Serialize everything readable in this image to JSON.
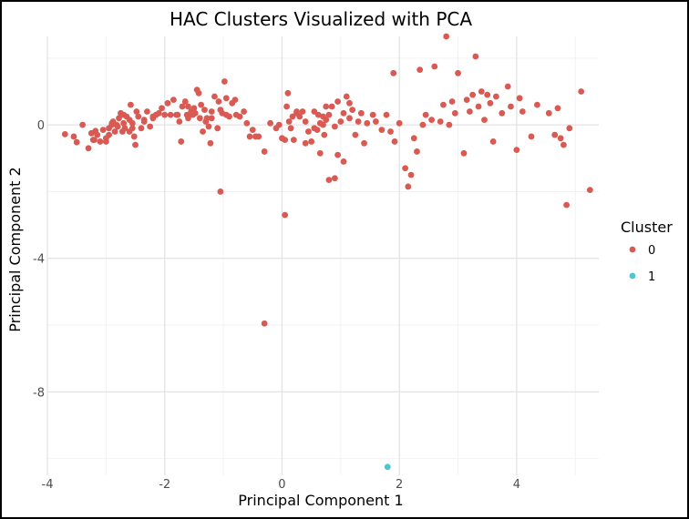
{
  "chart_data": {
    "type": "scatter",
    "title": "HAC Clusters Visualized with PCA",
    "xlabel": "Principal Component 1",
    "ylabel": "Principal Component 2",
    "xlim": [
      -4,
      5.4
    ],
    "ylim": [
      -10.5,
      2.65
    ],
    "x_ticks": [
      -4,
      -2,
      0,
      2,
      4
    ],
    "y_ticks": [
      0,
      -4,
      -8
    ],
    "grid": true,
    "legend": {
      "title": "Cluster",
      "position": "right"
    },
    "colors": {
      "0": "#d95a53",
      "1": "#4ec6cf"
    },
    "series": [
      {
        "name": "0",
        "color": "#d95a53",
        "points": [
          [
            -3.7,
            -0.28
          ],
          [
            -3.55,
            -0.35
          ],
          [
            -3.5,
            -0.52
          ],
          [
            -3.4,
            0.0
          ],
          [
            -3.3,
            -0.7
          ],
          [
            -3.25,
            -0.25
          ],
          [
            -3.22,
            -0.45
          ],
          [
            -3.18,
            -0.18
          ],
          [
            -3.15,
            -0.3
          ],
          [
            -3.1,
            -0.5
          ],
          [
            -3.05,
            -0.15
          ],
          [
            -3.0,
            -0.4
          ],
          [
            -2.95,
            -0.3
          ],
          [
            -2.9,
            0.0
          ],
          [
            -2.88,
            0.1
          ],
          [
            -2.85,
            -0.2
          ],
          [
            -2.8,
            -0.05
          ],
          [
            -2.78,
            0.2
          ],
          [
            -2.75,
            0.35
          ],
          [
            -2.72,
            -0.2
          ],
          [
            -2.7,
            0.05
          ],
          [
            -2.68,
            -0.1
          ],
          [
            -2.65,
            0.25
          ],
          [
            -2.6,
            0.15
          ],
          [
            -2.58,
            0.6
          ],
          [
            -2.55,
            0.05
          ],
          [
            -2.52,
            -0.35
          ],
          [
            -2.5,
            -0.6
          ],
          [
            -2.48,
            0.4
          ],
          [
            -2.45,
            0.25
          ],
          [
            -2.4,
            -0.1
          ],
          [
            -2.35,
            0.1
          ],
          [
            -2.3,
            0.4
          ],
          [
            -2.25,
            -0.05
          ],
          [
            -2.2,
            0.25
          ],
          [
            -2.15,
            0.3
          ],
          [
            -2.1,
            0.35
          ],
          [
            -2.05,
            0.5
          ],
          [
            -2.0,
            0.3
          ],
          [
            -1.95,
            0.65
          ],
          [
            -1.85,
            0.75
          ],
          [
            -1.8,
            0.3
          ],
          [
            -1.75,
            0.1
          ],
          [
            -1.72,
            -0.5
          ],
          [
            -1.7,
            0.55
          ],
          [
            -1.65,
            0.7
          ],
          [
            -1.62,
            0.3
          ],
          [
            -1.6,
            0.2
          ],
          [
            -1.55,
            0.4
          ],
          [
            -1.5,
            0.5
          ],
          [
            -1.48,
            0.35
          ],
          [
            -1.45,
            1.05
          ],
          [
            -1.42,
            0.95
          ],
          [
            -1.38,
            0.6
          ],
          [
            -1.35,
            -0.2
          ],
          [
            -1.32,
            0.45
          ],
          [
            -1.3,
            0.1
          ],
          [
            -1.28,
            0.2
          ],
          [
            -1.25,
            -0.05
          ],
          [
            -1.22,
            -0.55
          ],
          [
            -1.2,
            0.2
          ],
          [
            -1.15,
            0.85
          ],
          [
            -1.1,
            -0.1
          ],
          [
            -1.05,
            0.45
          ],
          [
            -1.02,
            0.35
          ],
          [
            -0.98,
            1.3
          ],
          [
            -0.95,
            0.8
          ],
          [
            -0.9,
            0.25
          ],
          [
            -0.85,
            0.65
          ],
          [
            -0.8,
            0.75
          ],
          [
            -0.78,
            0.3
          ],
          [
            -0.72,
            0.25
          ],
          [
            -0.65,
            0.4
          ],
          [
            -0.6,
            0.05
          ],
          [
            -0.5,
            -0.15
          ],
          [
            -0.45,
            -0.35
          ],
          [
            -0.4,
            -0.35
          ],
          [
            -0.3,
            -0.8
          ],
          [
            -0.2,
            0.05
          ],
          [
            -0.1,
            -0.1
          ],
          [
            -0.05,
            0.0
          ],
          [
            0.0,
            -0.4
          ],
          [
            0.05,
            -0.45
          ],
          [
            0.08,
            0.55
          ],
          [
            0.1,
            0.95
          ],
          [
            0.12,
            0.1
          ],
          [
            0.15,
            -0.1
          ],
          [
            0.18,
            0.25
          ],
          [
            0.2,
            -0.45
          ],
          [
            0.25,
            0.35
          ],
          [
            0.3,
            0.25
          ],
          [
            0.35,
            0.4
          ],
          [
            0.4,
            0.1
          ],
          [
            0.45,
            -0.2
          ],
          [
            0.5,
            -0.5
          ],
          [
            0.55,
            0.4
          ],
          [
            0.6,
            -0.15
          ],
          [
            0.62,
            0.3
          ],
          [
            0.65,
            0.05
          ],
          [
            0.7,
            0.0
          ],
          [
            0.72,
            -0.3
          ],
          [
            0.75,
            0.15
          ],
          [
            0.8,
            0.3
          ],
          [
            0.85,
            0.55
          ],
          [
            0.9,
            -0.05
          ],
          [
            0.95,
            0.7
          ],
          [
            1.0,
            0.1
          ],
          [
            1.05,
            0.35
          ],
          [
            1.1,
            0.85
          ],
          [
            1.15,
            0.65
          ],
          [
            1.2,
            0.45
          ],
          [
            1.25,
            -0.3
          ],
          [
            1.3,
            0.1
          ],
          [
            1.35,
            0.35
          ],
          [
            1.4,
            -0.55
          ],
          [
            1.45,
            0.05
          ],
          [
            1.55,
            0.3
          ],
          [
            1.6,
            0.1
          ],
          [
            1.7,
            -0.15
          ],
          [
            1.78,
            0.3
          ],
          [
            1.85,
            -0.2
          ],
          [
            1.9,
            1.55
          ],
          [
            1.92,
            -0.5
          ],
          [
            2.0,
            0.05
          ],
          [
            2.1,
            -1.3
          ],
          [
            2.15,
            -1.85
          ],
          [
            2.2,
            -1.5
          ],
          [
            2.25,
            -0.4
          ],
          [
            2.3,
            -0.8
          ],
          [
            2.35,
            1.65
          ],
          [
            2.4,
            0.0
          ],
          [
            2.45,
            0.3
          ],
          [
            2.55,
            0.15
          ],
          [
            2.6,
            1.75
          ],
          [
            2.7,
            0.1
          ],
          [
            2.75,
            0.6
          ],
          [
            2.8,
            2.65
          ],
          [
            2.85,
            0.0
          ],
          [
            2.9,
            0.7
          ],
          [
            2.95,
            0.35
          ],
          [
            3.0,
            1.55
          ],
          [
            3.1,
            -0.85
          ],
          [
            3.15,
            0.75
          ],
          [
            3.2,
            0.4
          ],
          [
            3.25,
            0.9
          ],
          [
            3.3,
            2.05
          ],
          [
            3.35,
            0.55
          ],
          [
            3.4,
            1.0
          ],
          [
            3.45,
            0.15
          ],
          [
            3.5,
            0.9
          ],
          [
            3.55,
            0.65
          ],
          [
            3.6,
            -0.5
          ],
          [
            3.65,
            0.85
          ],
          [
            3.75,
            0.35
          ],
          [
            3.85,
            1.15
          ],
          [
            3.9,
            0.55
          ],
          [
            4.0,
            -0.75
          ],
          [
            4.05,
            0.8
          ],
          [
            4.1,
            0.4
          ],
          [
            4.25,
            -0.35
          ],
          [
            4.35,
            0.6
          ],
          [
            4.55,
            0.35
          ],
          [
            4.65,
            -0.3
          ],
          [
            4.7,
            0.5
          ],
          [
            4.75,
            -0.4
          ],
          [
            4.8,
            -0.6
          ],
          [
            4.85,
            -2.4
          ],
          [
            4.9,
            -0.1
          ],
          [
            5.1,
            1.0
          ],
          [
            5.25,
            -1.95
          ],
          [
            -1.05,
            -2.0
          ],
          [
            0.05,
            -2.7
          ],
          [
            -0.3,
            -5.95
          ],
          [
            0.8,
            -1.65
          ],
          [
            0.65,
            -0.85
          ],
          [
            0.95,
            -0.9
          ],
          [
            1.05,
            -1.1
          ],
          [
            0.9,
            -1.6
          ],
          [
            -3.0,
            -0.5
          ],
          [
            -2.9,
            0.05
          ],
          [
            -2.7,
            0.3
          ],
          [
            -2.6,
            -0.2
          ],
          [
            -2.35,
            0.15
          ],
          [
            -1.9,
            0.3
          ],
          [
            -1.6,
            0.55
          ],
          [
            -1.4,
            0.2
          ],
          [
            -1.2,
            0.4
          ],
          [
            -0.95,
            0.3
          ],
          [
            -0.55,
            -0.35
          ],
          [
            0.4,
            -0.55
          ],
          [
            0.55,
            -0.1
          ],
          [
            0.75,
            0.55
          ],
          [
            1.15,
            0.2
          ],
          [
            -3.2,
            -0.45
          ],
          [
            -2.95,
            -0.1
          ],
          [
            -2.82,
            0.0
          ],
          [
            -2.55,
            -0.1
          ],
          [
            -2.2,
            0.2
          ],
          [
            -1.78,
            0.3
          ],
          [
            -1.52,
            0.3
          ],
          [
            -1.08,
            0.7
          ],
          [
            0.25,
            0.4
          ],
          [
            0.7,
            0.25
          ]
        ]
      },
      {
        "name": "1",
        "color": "#4ec6cf",
        "points": [
          [
            1.8,
            -10.25
          ]
        ]
      }
    ]
  }
}
